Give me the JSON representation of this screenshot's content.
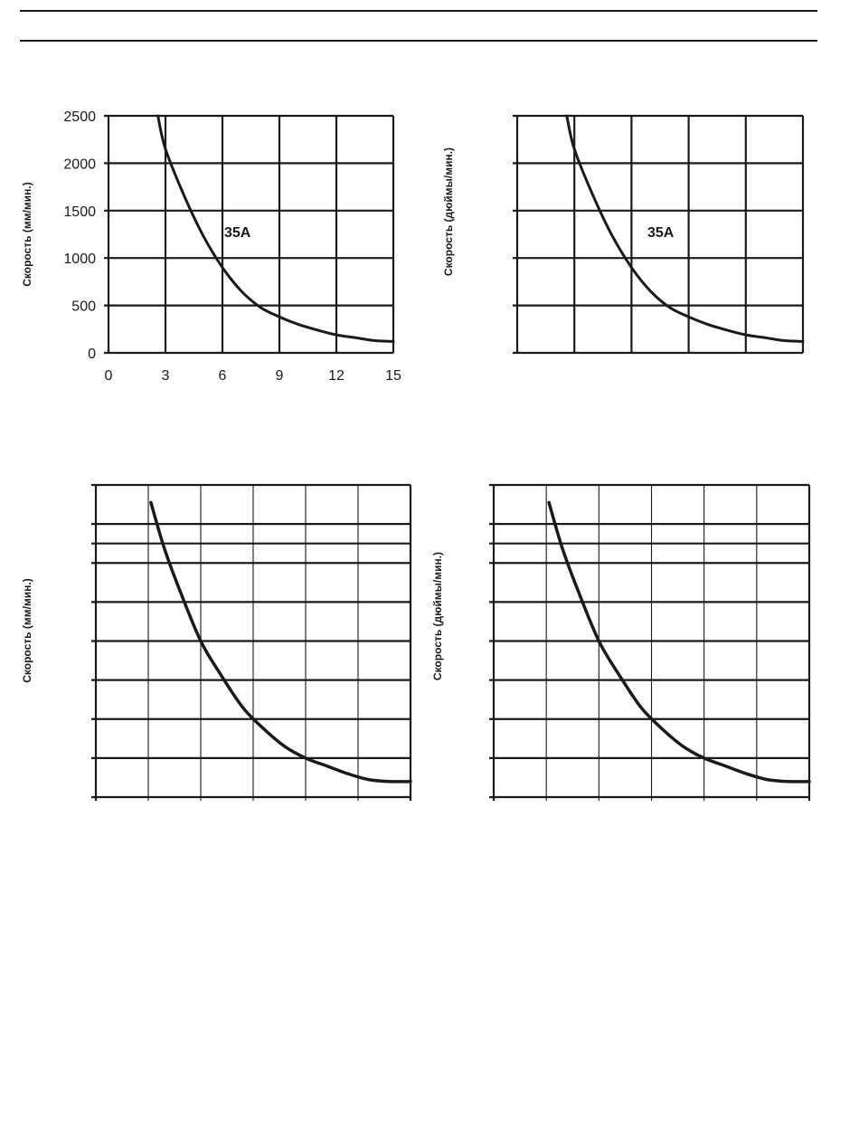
{
  "chart_data": [
    {
      "type": "line",
      "title": "",
      "xlabel": "",
      "ylabel": "Скорость (мм/мин.)",
      "xlim": [
        0,
        15
      ],
      "ylim": [
        0,
        2500
      ],
      "grid": true,
      "x_ticks": [
        "0",
        "3",
        "6",
        "9",
        "12",
        "15"
      ],
      "y_ticks": [
        "0",
        "500",
        "1000",
        "1500",
        "2000",
        "2500"
      ],
      "annotation": "35A",
      "series": [
        {
          "x": [
            2.6,
            3,
            4,
            5,
            6,
            7,
            8,
            9,
            10,
            11,
            12,
            13,
            14,
            15
          ],
          "y": [
            2500,
            2150,
            1650,
            1230,
            900,
            650,
            480,
            380,
            300,
            240,
            190,
            160,
            130,
            120
          ]
        }
      ]
    },
    {
      "type": "line",
      "title": "",
      "xlabel": "",
      "ylabel": "Скорость (дюймы/мин.)",
      "xlim": [
        0,
        15
      ],
      "ylim": [
        0,
        2500
      ],
      "grid": true,
      "annotation": "35A",
      "series": [
        {
          "x": [
            2.6,
            3,
            4,
            5,
            6,
            7,
            8,
            9,
            10,
            11,
            12,
            13,
            14,
            15
          ],
          "y": [
            2500,
            2150,
            1650,
            1230,
            900,
            650,
            480,
            380,
            300,
            240,
            190,
            160,
            130,
            120
          ]
        }
      ]
    },
    {
      "type": "line",
      "title": "",
      "xlabel": "",
      "ylabel": "Скорость (мм/мин.)",
      "xlim": [
        0,
        6
      ],
      "ylim": [
        0,
        8
      ],
      "grid": true,
      "series": [
        {
          "x": [
            1.05,
            1.3,
            1.6,
            2.0,
            2.4,
            2.8,
            3.2,
            3.6,
            4.0,
            4.4,
            4.8,
            5.2,
            5.6,
            6.0
          ],
          "y": [
            7.55,
            6.4,
            5.3,
            4.0,
            3.1,
            2.3,
            1.75,
            1.3,
            1.0,
            0.8,
            0.6,
            0.45,
            0.4,
            0.4
          ]
        }
      ]
    },
    {
      "type": "line",
      "title": "",
      "xlabel": "",
      "ylabel": "Скорость (дюймы/мин.)",
      "xlim": [
        0,
        6
      ],
      "ylim": [
        0,
        8
      ],
      "grid": true,
      "series": [
        {
          "x": [
            1.05,
            1.3,
            1.6,
            2.0,
            2.4,
            2.8,
            3.2,
            3.6,
            4.0,
            4.4,
            4.8,
            5.2,
            5.6,
            6.0
          ],
          "y": [
            7.55,
            6.4,
            5.3,
            4.0,
            3.1,
            2.3,
            1.75,
            1.3,
            1.0,
            0.8,
            0.6,
            0.45,
            0.4,
            0.4
          ]
        }
      ]
    }
  ]
}
